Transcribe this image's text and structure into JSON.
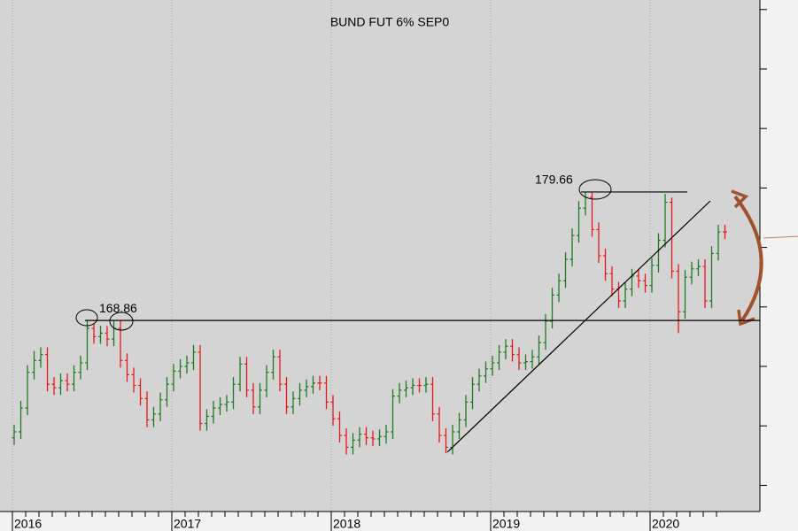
{
  "chart_data": {
    "type": "ohlc",
    "title": "BUND FUT 6% SEP0",
    "categories": [
      "2016",
      null,
      null,
      null,
      null,
      null,
      null,
      null,
      null,
      null,
      null,
      null,
      null,
      null,
      null,
      null,
      null,
      null,
      null,
      null,
      null,
      null,
      null,
      null,
      "2017",
      null,
      null,
      null,
      null,
      null,
      null,
      null,
      null,
      null,
      null,
      null,
      null,
      null,
      null,
      null,
      null,
      null,
      null,
      null,
      null,
      null,
      null,
      null,
      "2018",
      null,
      null,
      null,
      null,
      null,
      null,
      null,
      null,
      null,
      null,
      null,
      null,
      null,
      null,
      null,
      null,
      null,
      null,
      null,
      null,
      null,
      null,
      null,
      "2019",
      null,
      null,
      null,
      null,
      null,
      null,
      null,
      null,
      null,
      null,
      null,
      null,
      null,
      null,
      null,
      null,
      null,
      null,
      null,
      null,
      null,
      null,
      null,
      "2020",
      null,
      null,
      null,
      null,
      null,
      null,
      null,
      null,
      null,
      null,
      null
    ],
    "open": [
      159.0,
      159.5,
      161.5,
      164.5,
      165.5,
      166.0,
      163.5,
      163.2,
      163.8,
      163.5,
      164.5,
      165.3,
      168.2,
      167.5,
      167.8,
      167.3,
      168.2,
      165.5,
      164.3,
      163.4,
      162.3,
      160.5,
      161.0,
      162.2,
      163.5,
      164.6,
      165.0,
      165.3,
      166.2,
      160.2,
      160.8,
      161.5,
      161.8,
      162.0,
      163.5,
      165.2,
      163.0,
      161.6,
      163.0,
      164.5,
      165.8,
      163.5,
      161.6,
      162.3,
      163.0,
      163.3,
      163.6,
      163.6,
      162.0,
      160.6,
      159.2,
      158.2,
      158.8,
      159.3,
      159.0,
      158.9,
      159.1,
      159.5,
      162.5,
      163.0,
      163.2,
      163.4,
      163.4,
      163.5,
      161.0,
      159.2,
      158.2,
      159.5,
      160.5,
      162.0,
      163.5,
      164.2,
      164.8,
      165.3,
      166.2,
      166.7,
      166.0,
      165.3,
      165.4,
      165.8,
      167.0,
      168.8,
      171.0,
      172.2,
      174.0,
      176.0,
      178.3,
      179.2,
      176.5,
      174.3,
      172.8,
      171.5,
      170.5,
      171.5,
      172.6,
      172.2,
      171.8,
      173.5,
      175.6,
      178.8,
      173.0,
      169.6,
      172.5,
      173.2,
      173.4,
      170.5,
      174.5,
      176.3
    ],
    "high": [
      160.1,
      162.1,
      165.1,
      166.3,
      166.6,
      166.6,
      164.1,
      164.4,
      164.4,
      165.1,
      165.9,
      168.86,
      168.6,
      168.4,
      168.4,
      168.86,
      168.8,
      166.1,
      164.9,
      164.0,
      162.9,
      161.6,
      162.8,
      164.1,
      165.2,
      165.6,
      165.9,
      166.8,
      166.8,
      161.4,
      162.1,
      162.4,
      162.6,
      164.1,
      165.8,
      165.8,
      163.6,
      163.6,
      165.1,
      166.4,
      166.4,
      164.1,
      162.9,
      163.6,
      163.9,
      164.2,
      164.2,
      164.2,
      162.6,
      161.2,
      159.8,
      159.4,
      159.9,
      159.9,
      159.6,
      159.7,
      160.1,
      163.1,
      163.6,
      163.8,
      164.0,
      164.0,
      164.1,
      164.1,
      161.6,
      159.8,
      160.1,
      161.1,
      162.6,
      164.1,
      164.8,
      165.4,
      165.9,
      166.8,
      167.3,
      167.3,
      166.6,
      166.0,
      166.4,
      167.6,
      169.4,
      171.6,
      172.8,
      174.6,
      176.6,
      178.9,
      179.66,
      179.6,
      177.1,
      174.9,
      173.4,
      172.1,
      172.1,
      173.2,
      173.2,
      172.8,
      174.1,
      176.2,
      179.5,
      179.2,
      173.6,
      173.1,
      173.8,
      174.0,
      174.0,
      175.1,
      176.9,
      176.9
    ],
    "low": [
      158.4,
      158.9,
      160.9,
      163.9,
      164.9,
      162.9,
      162.6,
      162.6,
      162.9,
      162.9,
      163.9,
      164.7,
      166.9,
      166.9,
      166.7,
      166.7,
      164.9,
      163.7,
      162.8,
      161.7,
      159.9,
      159.9,
      160.4,
      161.6,
      162.9,
      164.0,
      164.4,
      164.7,
      159.6,
      159.6,
      160.2,
      160.9,
      161.2,
      161.4,
      162.9,
      162.4,
      161.0,
      161.0,
      162.4,
      163.9,
      162.9,
      161.0,
      161.0,
      161.7,
      162.4,
      162.7,
      163.0,
      161.4,
      160.0,
      158.6,
      157.6,
      157.6,
      158.2,
      158.4,
      158.3,
      158.3,
      158.5,
      158.9,
      161.9,
      162.4,
      162.6,
      162.8,
      162.8,
      160.4,
      158.6,
      157.7,
      157.6,
      158.9,
      159.9,
      161.4,
      162.9,
      163.6,
      164.2,
      164.7,
      165.6,
      165.4,
      164.7,
      164.7,
      164.8,
      165.2,
      166.4,
      168.2,
      170.4,
      171.6,
      173.4,
      175.4,
      177.7,
      175.9,
      173.7,
      172.2,
      170.9,
      169.9,
      169.9,
      170.9,
      171.6,
      171.2,
      171.2,
      172.9,
      175.0,
      172.4,
      167.8,
      169.0,
      171.9,
      172.6,
      169.9,
      169.9,
      173.9,
      175.7
    ],
    "close": [
      159.5,
      161.5,
      164.5,
      165.5,
      166.0,
      163.5,
      163.2,
      163.8,
      163.5,
      164.5,
      165.3,
      168.2,
      167.5,
      167.8,
      167.3,
      168.2,
      165.5,
      164.3,
      163.4,
      162.3,
      160.5,
      161.0,
      162.2,
      163.5,
      164.6,
      165.0,
      165.3,
      166.2,
      160.2,
      160.8,
      161.5,
      161.8,
      162.0,
      163.5,
      165.2,
      163.0,
      161.6,
      163.0,
      164.5,
      165.8,
      163.5,
      161.6,
      162.3,
      163.0,
      163.3,
      163.6,
      163.6,
      162.0,
      160.6,
      159.2,
      158.2,
      158.8,
      159.3,
      159.0,
      158.9,
      159.1,
      159.5,
      162.5,
      163.0,
      163.2,
      163.4,
      163.4,
      163.5,
      161.0,
      159.2,
      158.2,
      159.5,
      160.5,
      162.0,
      163.5,
      164.2,
      164.8,
      165.3,
      166.2,
      166.7,
      166.0,
      165.3,
      165.4,
      165.8,
      167.0,
      168.8,
      171.0,
      172.2,
      174.0,
      176.0,
      178.3,
      179.2,
      176.5,
      174.3,
      172.8,
      171.5,
      170.5,
      171.5,
      172.6,
      172.2,
      171.8,
      173.5,
      175.6,
      178.8,
      173.0,
      169.6,
      172.5,
      173.2,
      173.4,
      170.5,
      174.5,
      176.3,
      176.3
    ],
    "up_color": "#1e7a1e",
    "down_color": "#e81818",
    "levels": [
      168.86,
      179.66
    ],
    "ylim": [
      152.8,
      195.8
    ],
    "yticks": [
      155,
      160,
      165,
      170,
      175,
      180,
      185,
      190,
      195
    ]
  }
}
